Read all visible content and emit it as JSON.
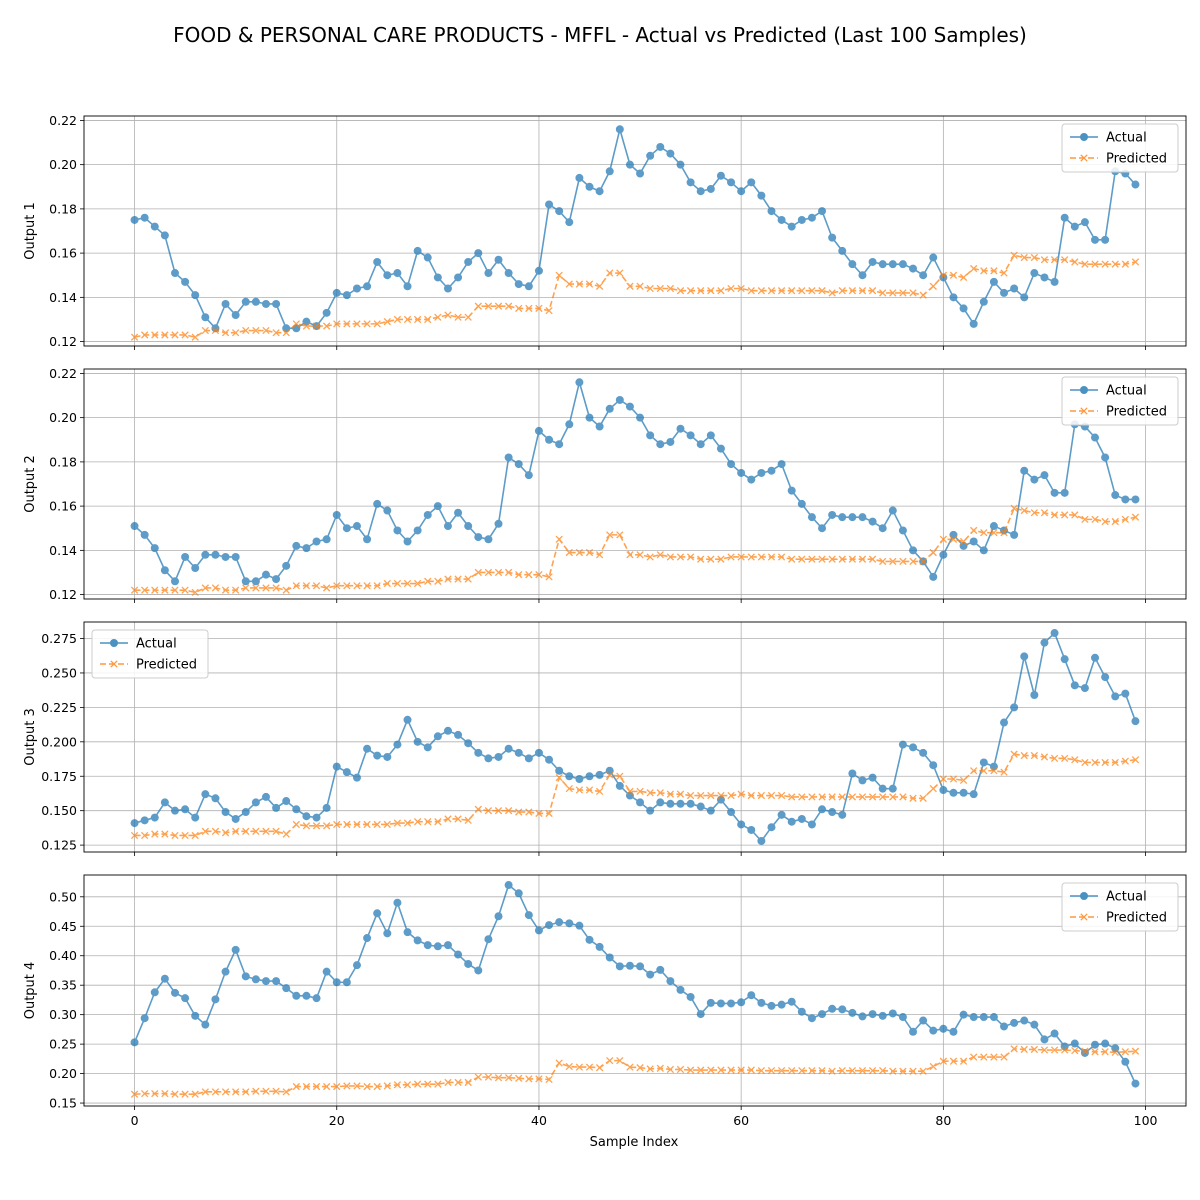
{
  "figure": {
    "title": "FOOD & PERSONAL CARE PRODUCTS - MFFL - Actual vs Predicted (Last 100 Samples)",
    "xlabel": "Sample Index"
  },
  "colors": {
    "actual": "#1f77b4",
    "predicted": "#ff7f0e",
    "grid": "#b0b0b0"
  },
  "chart_data": [
    {
      "type": "line",
      "ylabel": "Output 1",
      "xlim": [
        -5,
        104
      ],
      "ylim": [
        0.118,
        0.222
      ],
      "xticks": [
        0,
        20,
        40,
        60,
        80,
        100
      ],
      "yticks": [
        0.12,
        0.14,
        0.16,
        0.18,
        0.2,
        0.22
      ],
      "ytick_labels": [
        "0.12",
        "0.14",
        "0.16",
        "0.18",
        "0.20",
        "0.22"
      ],
      "show_xtick_labels": false,
      "grid": true,
      "legend": "top-right",
      "series": [
        {
          "name": "Actual",
          "values": [
            0.175,
            0.176,
            0.172,
            0.168,
            0.151,
            0.147,
            0.141,
            0.131,
            0.126,
            0.137,
            0.132,
            0.138,
            0.138,
            0.137,
            0.137,
            0.126,
            0.126,
            0.129,
            0.127,
            0.133,
            0.142,
            0.141,
            0.144,
            0.145,
            0.156,
            0.15,
            0.151,
            0.145,
            0.161,
            0.158,
            0.149,
            0.144,
            0.149,
            0.156,
            0.16,
            0.151,
            0.157,
            0.151,
            0.146,
            0.145,
            0.152,
            0.182,
            0.179,
            0.174,
            0.194,
            0.19,
            0.188,
            0.197,
            0.216,
            0.2,
            0.196,
            0.204,
            0.208,
            0.205,
            0.2,
            0.192,
            0.188,
            0.189,
            0.195,
            0.192,
            0.188,
            0.192,
            0.186,
            0.179,
            0.175,
            0.172,
            0.175,
            0.176,
            0.179,
            0.167,
            0.161,
            0.155,
            0.15,
            0.156,
            0.155,
            0.155,
            0.155,
            0.153,
            0.15,
            0.158,
            0.149,
            0.14,
            0.135,
            0.128,
            0.138,
            0.147,
            0.142,
            0.144,
            0.14,
            0.151,
            0.149,
            0.147,
            0.176,
            0.172,
            0.174,
            0.166,
            0.166,
            0.197,
            0.196,
            0.191
          ]
        },
        {
          "name": "Predicted",
          "values": [
            0.122,
            0.123,
            0.123,
            0.123,
            0.123,
            0.123,
            0.122,
            0.125,
            0.125,
            0.124,
            0.124,
            0.125,
            0.125,
            0.125,
            0.124,
            0.124,
            0.128,
            0.127,
            0.127,
            0.127,
            0.128,
            0.128,
            0.128,
            0.128,
            0.128,
            0.129,
            0.13,
            0.13,
            0.13,
            0.13,
            0.131,
            0.132,
            0.131,
            0.131,
            0.136,
            0.136,
            0.136,
            0.136,
            0.135,
            0.135,
            0.135,
            0.134,
            0.15,
            0.146,
            0.146,
            0.146,
            0.145,
            0.151,
            0.151,
            0.145,
            0.145,
            0.144,
            0.144,
            0.144,
            0.143,
            0.143,
            0.143,
            0.143,
            0.143,
            0.144,
            0.144,
            0.143,
            0.143,
            0.143,
            0.143,
            0.143,
            0.143,
            0.143,
            0.143,
            0.142,
            0.143,
            0.143,
            0.143,
            0.143,
            0.142,
            0.142,
            0.142,
            0.142,
            0.141,
            0.145,
            0.15,
            0.15,
            0.149,
            0.153,
            0.152,
            0.152,
            0.151,
            0.159,
            0.158,
            0.158,
            0.157,
            0.157,
            0.157,
            0.156,
            0.155,
            0.155,
            0.155,
            0.155,
            0.155,
            0.156
          ]
        }
      ]
    },
    {
      "type": "line",
      "ylabel": "Output 2",
      "xlim": [
        -5,
        104
      ],
      "ylim": [
        0.118,
        0.222
      ],
      "xticks": [
        0,
        20,
        40,
        60,
        80,
        100
      ],
      "yticks": [
        0.12,
        0.14,
        0.16,
        0.18,
        0.2,
        0.22
      ],
      "ytick_labels": [
        "0.12",
        "0.14",
        "0.16",
        "0.18",
        "0.20",
        "0.22"
      ],
      "show_xtick_labels": false,
      "grid": true,
      "legend": "top-right",
      "series": [
        {
          "name": "Actual",
          "values": [
            0.151,
            0.147,
            0.141,
            0.131,
            0.126,
            0.137,
            0.132,
            0.138,
            0.138,
            0.137,
            0.137,
            0.126,
            0.126,
            0.129,
            0.127,
            0.133,
            0.142,
            0.141,
            0.144,
            0.145,
            0.156,
            0.15,
            0.151,
            0.145,
            0.161,
            0.158,
            0.149,
            0.144,
            0.149,
            0.156,
            0.16,
            0.151,
            0.157,
            0.151,
            0.146,
            0.145,
            0.152,
            0.182,
            0.179,
            0.174,
            0.194,
            0.19,
            0.188,
            0.197,
            0.216,
            0.2,
            0.196,
            0.204,
            0.208,
            0.205,
            0.2,
            0.192,
            0.188,
            0.189,
            0.195,
            0.192,
            0.188,
            0.192,
            0.186,
            0.179,
            0.175,
            0.172,
            0.175,
            0.176,
            0.179,
            0.167,
            0.161,
            0.155,
            0.15,
            0.156,
            0.155,
            0.155,
            0.155,
            0.153,
            0.15,
            0.158,
            0.149,
            0.14,
            0.135,
            0.128,
            0.138,
            0.147,
            0.142,
            0.144,
            0.14,
            0.151,
            0.149,
            0.147,
            0.176,
            0.172,
            0.174,
            0.166,
            0.166,
            0.197,
            0.196,
            0.191,
            0.182,
            0.165,
            0.163,
            0.163
          ]
        },
        {
          "name": "Predicted",
          "values": [
            0.122,
            0.122,
            0.122,
            0.122,
            0.122,
            0.122,
            0.121,
            0.123,
            0.123,
            0.122,
            0.122,
            0.123,
            0.123,
            0.123,
            0.123,
            0.122,
            0.124,
            0.124,
            0.124,
            0.123,
            0.124,
            0.124,
            0.124,
            0.124,
            0.124,
            0.125,
            0.125,
            0.125,
            0.125,
            0.126,
            0.126,
            0.127,
            0.127,
            0.127,
            0.13,
            0.13,
            0.13,
            0.13,
            0.129,
            0.129,
            0.129,
            0.128,
            0.145,
            0.139,
            0.139,
            0.139,
            0.138,
            0.147,
            0.147,
            0.138,
            0.138,
            0.137,
            0.138,
            0.137,
            0.137,
            0.137,
            0.136,
            0.136,
            0.136,
            0.137,
            0.137,
            0.137,
            0.137,
            0.137,
            0.137,
            0.136,
            0.136,
            0.136,
            0.136,
            0.136,
            0.136,
            0.136,
            0.136,
            0.136,
            0.135,
            0.135,
            0.135,
            0.135,
            0.135,
            0.139,
            0.145,
            0.145,
            0.144,
            0.149,
            0.148,
            0.148,
            0.148,
            0.159,
            0.158,
            0.157,
            0.157,
            0.156,
            0.156,
            0.156,
            0.154,
            0.154,
            0.153,
            0.153,
            0.154,
            0.155
          ]
        }
      ]
    },
    {
      "type": "line",
      "ylabel": "Output 3",
      "xlim": [
        -5,
        104
      ],
      "ylim": [
        0.12,
        0.287
      ],
      "xticks": [
        0,
        20,
        40,
        60,
        80,
        100
      ],
      "yticks": [
        0.125,
        0.15,
        0.175,
        0.2,
        0.225,
        0.25,
        0.275
      ],
      "ytick_labels": [
        "0.125",
        "0.150",
        "0.175",
        "0.200",
        "0.225",
        "0.250",
        "0.275"
      ],
      "show_xtick_labels": false,
      "grid": true,
      "legend": "top-left",
      "series": [
        {
          "name": "Actual",
          "values": [
            0.141,
            0.143,
            0.145,
            0.156,
            0.15,
            0.151,
            0.145,
            0.162,
            0.159,
            0.149,
            0.144,
            0.149,
            0.156,
            0.16,
            0.152,
            0.157,
            0.151,
            0.146,
            0.145,
            0.152,
            0.182,
            0.178,
            0.174,
            0.195,
            0.19,
            0.189,
            0.198,
            0.216,
            0.2,
            0.196,
            0.204,
            0.208,
            0.205,
            0.199,
            0.192,
            0.188,
            0.189,
            0.195,
            0.192,
            0.188,
            0.192,
            0.187,
            0.179,
            0.175,
            0.173,
            0.175,
            0.176,
            0.179,
            0.168,
            0.161,
            0.156,
            0.15,
            0.156,
            0.155,
            0.155,
            0.155,
            0.153,
            0.15,
            0.158,
            0.149,
            0.14,
            0.136,
            0.128,
            0.138,
            0.147,
            0.142,
            0.144,
            0.14,
            0.151,
            0.149,
            0.147,
            0.177,
            0.172,
            0.174,
            0.166,
            0.166,
            0.198,
            0.196,
            0.192,
            0.183,
            0.165,
            0.163,
            0.163,
            0.162,
            0.185,
            0.182,
            0.214,
            0.225,
            0.262,
            0.234,
            0.272,
            0.279,
            0.26,
            0.241,
            0.239,
            0.261,
            0.247,
            0.233,
            0.235,
            0.215
          ]
        },
        {
          "name": "Predicted",
          "values": [
            0.132,
            0.132,
            0.133,
            0.133,
            0.132,
            0.132,
            0.132,
            0.135,
            0.135,
            0.134,
            0.135,
            0.135,
            0.135,
            0.135,
            0.135,
            0.133,
            0.14,
            0.139,
            0.139,
            0.139,
            0.14,
            0.14,
            0.14,
            0.14,
            0.14,
            0.14,
            0.141,
            0.141,
            0.142,
            0.142,
            0.142,
            0.144,
            0.144,
            0.143,
            0.151,
            0.15,
            0.15,
            0.15,
            0.149,
            0.149,
            0.148,
            0.148,
            0.174,
            0.166,
            0.165,
            0.165,
            0.164,
            0.176,
            0.175,
            0.164,
            0.164,
            0.163,
            0.163,
            0.162,
            0.162,
            0.161,
            0.161,
            0.161,
            0.161,
            0.161,
            0.162,
            0.161,
            0.161,
            0.161,
            0.161,
            0.16,
            0.16,
            0.16,
            0.16,
            0.16,
            0.16,
            0.16,
            0.16,
            0.16,
            0.16,
            0.16,
            0.16,
            0.159,
            0.159,
            0.166,
            0.173,
            0.173,
            0.172,
            0.179,
            0.179,
            0.179,
            0.178,
            0.191,
            0.19,
            0.19,
            0.189,
            0.188,
            0.188,
            0.187,
            0.185,
            0.185,
            0.185,
            0.185,
            0.186,
            0.187
          ]
        }
      ]
    },
    {
      "type": "line",
      "ylabel": "Output 4",
      "xlim": [
        -5,
        104
      ],
      "ylim": [
        0.145,
        0.537
      ],
      "xticks": [
        0,
        20,
        40,
        60,
        80,
        100
      ],
      "yticks": [
        0.15,
        0.2,
        0.25,
        0.3,
        0.35,
        0.4,
        0.45,
        0.5
      ],
      "ytick_labels": [
        "0.15",
        "0.20",
        "0.25",
        "0.30",
        "0.35",
        "0.40",
        "0.45",
        "0.50"
      ],
      "xtick_labels": [
        "0",
        "20",
        "40",
        "60",
        "80",
        "100"
      ],
      "show_xtick_labels": true,
      "grid": true,
      "legend": "top-right",
      "series": [
        {
          "name": "Actual",
          "values": [
            0.253,
            0.294,
            0.338,
            0.361,
            0.337,
            0.328,
            0.298,
            0.283,
            0.326,
            0.373,
            0.41,
            0.365,
            0.36,
            0.357,
            0.357,
            0.345,
            0.332,
            0.332,
            0.328,
            0.373,
            0.355,
            0.355,
            0.384,
            0.43,
            0.472,
            0.438,
            0.49,
            0.44,
            0.426,
            0.418,
            0.416,
            0.418,
            0.402,
            0.386,
            0.375,
            0.428,
            0.467,
            0.52,
            0.506,
            0.469,
            0.443,
            0.452,
            0.457,
            0.455,
            0.451,
            0.427,
            0.415,
            0.397,
            0.382,
            0.383,
            0.382,
            0.368,
            0.376,
            0.357,
            0.342,
            0.33,
            0.301,
            0.32,
            0.319,
            0.319,
            0.321,
            0.333,
            0.32,
            0.315,
            0.317,
            0.322,
            0.305,
            0.294,
            0.301,
            0.31,
            0.309,
            0.303,
            0.297,
            0.301,
            0.298,
            0.302,
            0.296,
            0.271,
            0.29,
            0.273,
            0.276,
            0.271,
            0.3,
            0.296,
            0.296,
            0.296,
            0.28,
            0.286,
            0.29,
            0.283,
            0.258,
            0.268,
            0.246,
            0.251,
            0.235,
            0.249,
            0.251,
            0.243,
            0.22,
            0.183
          ]
        },
        {
          "name": "Predicted",
          "values": [
            0.165,
            0.166,
            0.166,
            0.166,
            0.165,
            0.165,
            0.165,
            0.169,
            0.169,
            0.169,
            0.169,
            0.169,
            0.17,
            0.17,
            0.17,
            0.169,
            0.178,
            0.178,
            0.178,
            0.178,
            0.178,
            0.179,
            0.179,
            0.178,
            0.178,
            0.179,
            0.181,
            0.181,
            0.182,
            0.182,
            0.182,
            0.185,
            0.185,
            0.185,
            0.194,
            0.194,
            0.193,
            0.193,
            0.192,
            0.191,
            0.191,
            0.19,
            0.218,
            0.212,
            0.211,
            0.211,
            0.21,
            0.222,
            0.222,
            0.211,
            0.21,
            0.208,
            0.209,
            0.207,
            0.207,
            0.206,
            0.206,
            0.206,
            0.206,
            0.206,
            0.206,
            0.206,
            0.205,
            0.205,
            0.205,
            0.205,
            0.205,
            0.205,
            0.205,
            0.204,
            0.205,
            0.205,
            0.205,
            0.205,
            0.205,
            0.204,
            0.204,
            0.204,
            0.204,
            0.212,
            0.221,
            0.221,
            0.221,
            0.228,
            0.228,
            0.228,
            0.228,
            0.242,
            0.241,
            0.241,
            0.24,
            0.24,
            0.24,
            0.239,
            0.238,
            0.237,
            0.237,
            0.236,
            0.237,
            0.238
          ]
        }
      ]
    }
  ]
}
